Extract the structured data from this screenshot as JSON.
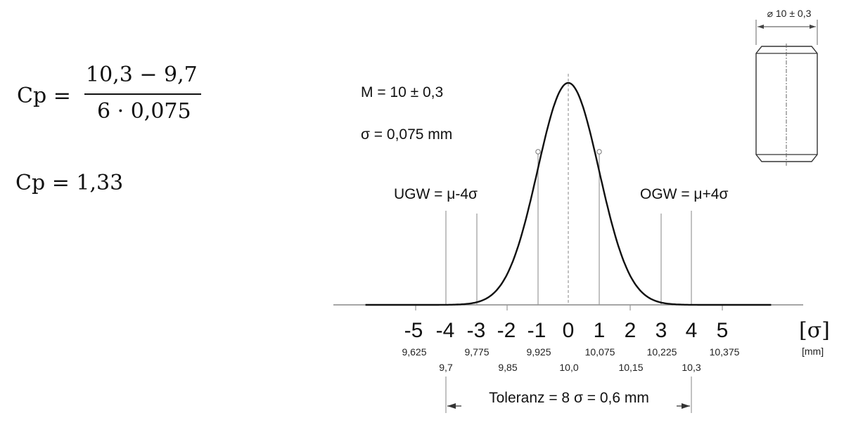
{
  "formula": {
    "lhs": "Cp =",
    "numerator": "10,3  − 9,7",
    "denominator": "6 · 0,075",
    "result": "Cp = 1,33"
  },
  "diagram": {
    "mean_label": "M = 10 ± 0,3",
    "sigma_label": "σ = 0,075 mm",
    "ugw_label": "UGW = μ-4σ",
    "ogw_label": "OGW = μ+4σ",
    "sigma_ticks": [
      "-5",
      "-4",
      "-3",
      "-2",
      "-1",
      "0",
      "1",
      "2",
      "3",
      "4",
      "5"
    ],
    "mm_ticks_upper": [
      "9,625",
      "9,775",
      "9,925",
      "10,075",
      "10,225",
      "10,375"
    ],
    "mm_ticks_lower": [
      "9,7",
      "9,85",
      "10,0",
      "10,15",
      "10,3"
    ],
    "axis_unit_sigma": "[σ]",
    "axis_unit_mm": "[mm]",
    "tolerance_label": "Toleranz = 8 σ = 0,6 mm",
    "part_dimension": "⌀ 10 ± 0,3"
  }
}
